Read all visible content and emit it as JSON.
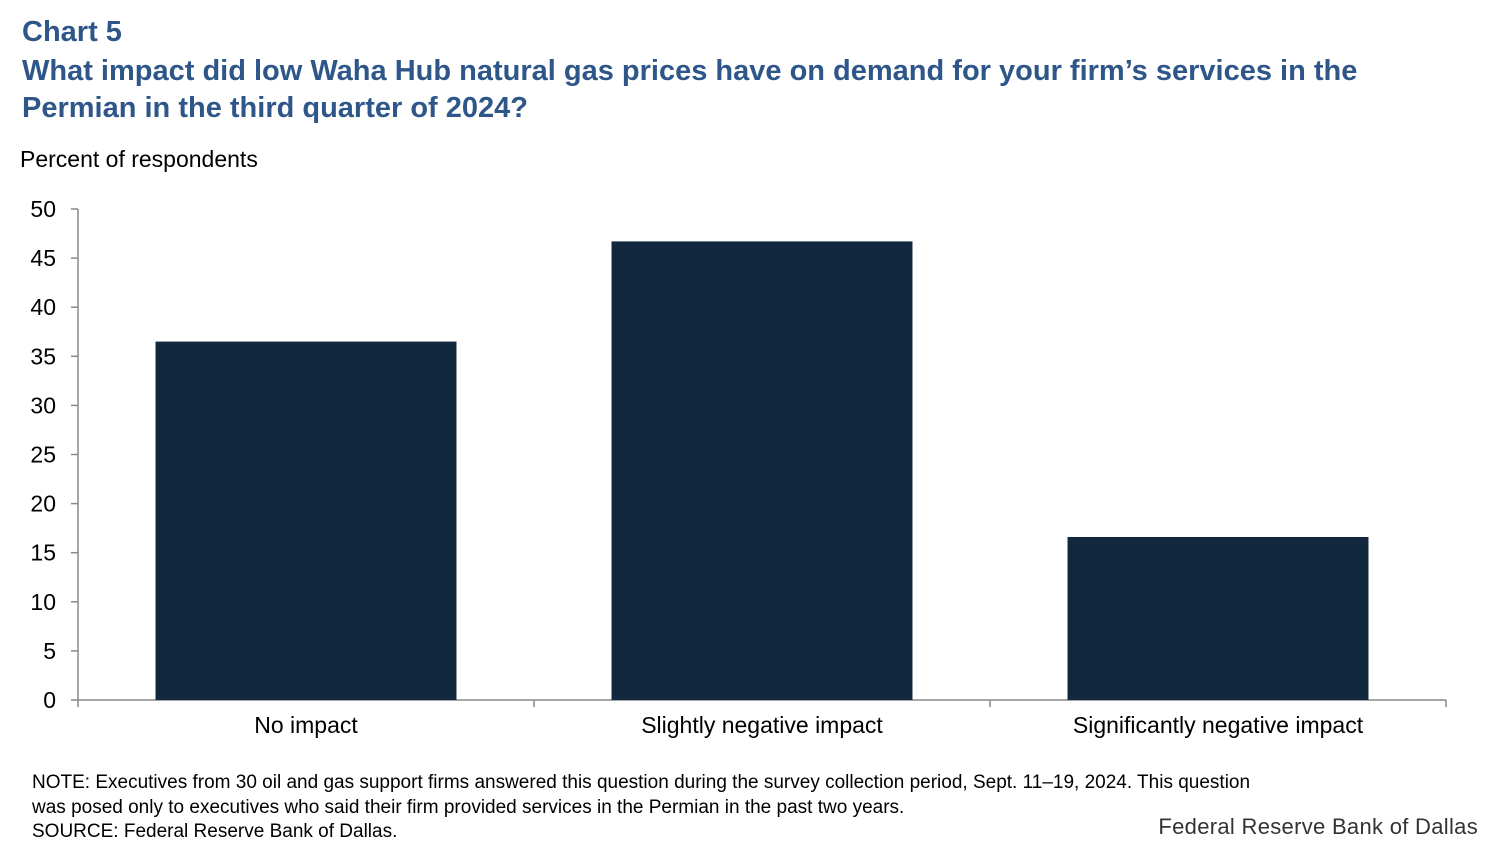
{
  "header": {
    "chart_number": "Chart 5",
    "title": "What impact did low Waha Hub natural gas prices have on demand for your firm’s services in the Permian in the third quarter of 2024?"
  },
  "chart_data": {
    "type": "bar",
    "title": "What impact did low Waha Hub natural gas prices have on demand for your firm’s services in the Permian in the third quarter of 2024?",
    "ylabel": "Percent of respondents",
    "xlabel": "",
    "categories": [
      "No impact",
      "Slightly negative impact",
      "Significantly negative impact"
    ],
    "values": [
      36.5,
      46.7,
      16.6
    ],
    "ylim": [
      0,
      50
    ],
    "yticks": [
      0,
      5,
      10,
      15,
      20,
      25,
      30,
      35,
      40,
      45,
      50
    ],
    "grid": false,
    "bar_color": "#12283f"
  },
  "footer": {
    "note_line1": "NOTE: Executives from 30 oil and gas support firms answered this question during the survey collection period, Sept. 11–19, 2024. This question",
    "note_line2": "was posed only to executives who said their firm provided services in the Permian in the past two years.",
    "source": "SOURCE: Federal Reserve Bank of Dallas.",
    "brand": "Federal Reserve Bank of Dallas"
  }
}
